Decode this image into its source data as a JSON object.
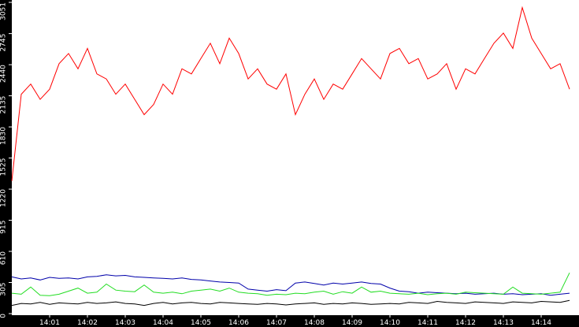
{
  "chart_data": {
    "type": "line",
    "x": [
      0,
      15,
      30,
      45,
      60,
      75,
      90,
      105,
      120,
      135,
      150,
      165,
      180,
      195,
      210,
      225,
      240,
      255,
      270,
      285,
      300,
      315,
      330,
      345,
      360,
      375,
      390,
      405,
      420,
      435,
      450,
      465,
      480,
      495,
      510,
      525,
      540,
      555,
      570,
      585,
      600,
      615,
      630,
      645,
      660,
      675,
      690,
      705,
      720,
      735,
      750,
      765,
      780,
      795,
      810,
      825,
      840,
      855,
      870,
      885
    ],
    "xlim": [
      0,
      900
    ],
    "xticks": [
      {
        "value": 60,
        "label": "14:01"
      },
      {
        "value": 120,
        "label": "14:02"
      },
      {
        "value": 180,
        "label": "14:03"
      },
      {
        "value": 240,
        "label": "14:04"
      },
      {
        "value": 300,
        "label": "14:05"
      },
      {
        "value": 360,
        "label": "14:06"
      },
      {
        "value": 420,
        "label": "14:07"
      },
      {
        "value": 480,
        "label": "14:08"
      },
      {
        "value": 540,
        "label": "14:09"
      },
      {
        "value": 600,
        "label": "14:10"
      },
      {
        "value": 660,
        "label": "14:11"
      },
      {
        "value": 720,
        "label": "14:12"
      },
      {
        "value": 780,
        "label": "14:13"
      },
      {
        "value": 840,
        "label": "14:14"
      }
    ],
    "ylim": [
      0,
      3051
    ],
    "yticks": [
      0,
      305,
      610,
      915,
      1220,
      1525,
      1830,
      2135,
      2440,
      2745,
      3051
    ],
    "series": [
      {
        "color": "#ff0000",
        "values": [
          1300,
          2150,
          2250,
          2100,
          2200,
          2450,
          2550,
          2400,
          2600,
          2350,
          2300,
          2150,
          2250,
          2100,
          1950,
          2050,
          2250,
          2150,
          2400,
          2350,
          2500,
          2650,
          2450,
          2700,
          2550,
          2300,
          2400,
          2250,
          2200,
          2350,
          1950,
          2150,
          2300,
          2100,
          2250,
          2200,
          2350,
          2500,
          2400,
          2300,
          2550,
          2600,
          2450,
          2500,
          2300,
          2350,
          2450,
          2200,
          2400,
          2350,
          2500,
          2650,
          2750,
          2600,
          3000,
          2700,
          2550,
          2400,
          2450,
          2200
        ]
      },
      {
        "color": "#0000aa",
        "values": [
          360,
          340,
          350,
          330,
          355,
          345,
          350,
          340,
          360,
          365,
          380,
          370,
          375,
          360,
          355,
          350,
          345,
          340,
          350,
          335,
          330,
          320,
          310,
          305,
          300,
          240,
          230,
          220,
          235,
          225,
          300,
          310,
          295,
          280,
          300,
          290,
          300,
          310,
          295,
          290,
          250,
          220,
          215,
          200,
          210,
          205,
          200,
          195,
          200,
          190,
          195,
          200,
          190,
          195,
          185,
          190,
          195,
          180,
          190,
          200
        ]
      },
      {
        "color": "#22dd22",
        "values": [
          200,
          190,
          260,
          180,
          175,
          190,
          220,
          250,
          200,
          210,
          290,
          230,
          220,
          215,
          280,
          210,
          200,
          210,
          195,
          220,
          230,
          240,
          220,
          250,
          210,
          200,
          195,
          180,
          190,
          185,
          200,
          195,
          210,
          220,
          190,
          215,
          200,
          260,
          210,
          220,
          200,
          195,
          190,
          200,
          185,
          195,
          200,
          190,
          210,
          205,
          200,
          195,
          190,
          260,
          200,
          195,
          190,
          200,
          210,
          400
        ]
      },
      {
        "color": "#000000",
        "values": [
          80,
          100,
          95,
          110,
          90,
          105,
          100,
          95,
          110,
          100,
          105,
          115,
          100,
          95,
          80,
          100,
          110,
          95,
          105,
          110,
          100,
          95,
          110,
          105,
          100,
          95,
          90,
          100,
          95,
          85,
          95,
          100,
          105,
          90,
          100,
          95,
          105,
          100,
          90,
          95,
          100,
          95,
          110,
          105,
          100,
          120,
          110,
          105,
          100,
          115,
          110,
          105,
          100,
          115,
          110,
          105,
          120,
          115,
          110,
          130
        ]
      }
    ]
  }
}
